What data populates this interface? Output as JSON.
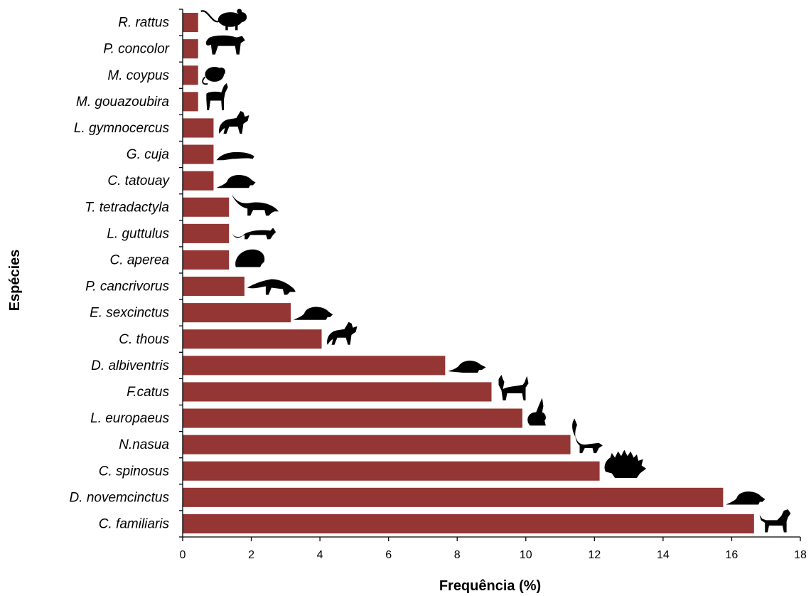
{
  "chart_data": {
    "type": "bar",
    "orientation": "horizontal",
    "xlabel": "Frequência (%)",
    "ylabel": "Espécies",
    "xlim": [
      0,
      18
    ],
    "xticks": [
      0,
      2,
      4,
      6,
      8,
      10,
      12,
      14,
      16,
      18
    ],
    "grid": false,
    "bar_color": "#943634",
    "categories": [
      "R. rattus",
      "P. concolor",
      "M. coypus",
      "M. gouazoubira",
      "L. gymnocercus",
      "G. cuja",
      "C. tatouay",
      "T. tetradactyla",
      "L. guttulus",
      "C. aperea",
      "P. cancrivorus",
      "E. sexcinctus",
      "C. thous",
      "D. albiventris",
      "F.catus",
      "L. europaeus",
      "N.nasua",
      "C. spinosus",
      "D. novemcinctus",
      "C. familiaris"
    ],
    "values": [
      0.45,
      0.45,
      0.45,
      0.45,
      0.9,
      0.9,
      0.9,
      1.35,
      1.35,
      1.35,
      1.8,
      3.15,
      4.05,
      7.65,
      9.0,
      9.9,
      11.3,
      12.15,
      15.75,
      16.65
    ],
    "icons": [
      "rat-icon",
      "puma-icon",
      "coypu-icon",
      "deer-icon",
      "fox-icon",
      "grison-icon",
      "armadillo-icon",
      "anteater-icon",
      "wildcat-icon",
      "guinea-pig-icon",
      "raccoon-icon",
      "armadillo-icon",
      "fox-icon",
      "opossum-icon",
      "cat-icon",
      "hare-icon",
      "coati-icon",
      "porcupine-icon",
      "armadillo-icon",
      "dog-icon"
    ]
  }
}
